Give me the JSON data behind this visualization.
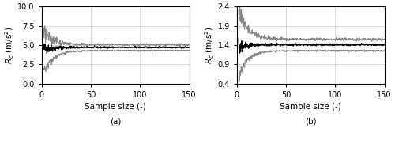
{
  "panel_a": {
    "ylabel": "$R_c$ (m/s$^2$)",
    "xlabel": "Sample size (-)",
    "label": "(a)",
    "ylim": [
      0,
      10
    ],
    "yticks": [
      0,
      2.5,
      5.0,
      7.5,
      10.0
    ],
    "xlim": [
      0,
      150
    ],
    "xticks": [
      0,
      50,
      100,
      150
    ],
    "mean_final": 4.7,
    "ci_upper_final": 5.05,
    "ci_lower_final": 4.35,
    "ci_upper_peak": 6.6,
    "ci_lower_peak": 2.0,
    "mean_peak": 4.5,
    "noise_std_mean": 0.05,
    "noise_std_ci": 0.07,
    "decay_tau": 10,
    "x_start": 2
  },
  "panel_b": {
    "ylabel": "$R_c$ (m/s$^2$)",
    "xlabel": "Sample size (-)",
    "label": "(b)",
    "ylim": [
      0.4,
      2.4
    ],
    "yticks": [
      0.4,
      0.9,
      1.4,
      1.9,
      2.4
    ],
    "xlim": [
      0,
      150
    ],
    "xticks": [
      0,
      50,
      100,
      150
    ],
    "mean_final": 1.41,
    "ci_upper_final": 1.55,
    "ci_lower_final": 1.27,
    "ci_upper_peak": 2.32,
    "ci_lower_peak": 0.72,
    "mean_peak": 1.36,
    "noise_std_mean": 0.012,
    "noise_std_ci": 0.018,
    "decay_tau": 9,
    "x_start": 2
  },
  "line_color_mean": "#000000",
  "line_color_ci": "#888888",
  "background_color": "#ffffff",
  "grid_color": "#cccccc"
}
